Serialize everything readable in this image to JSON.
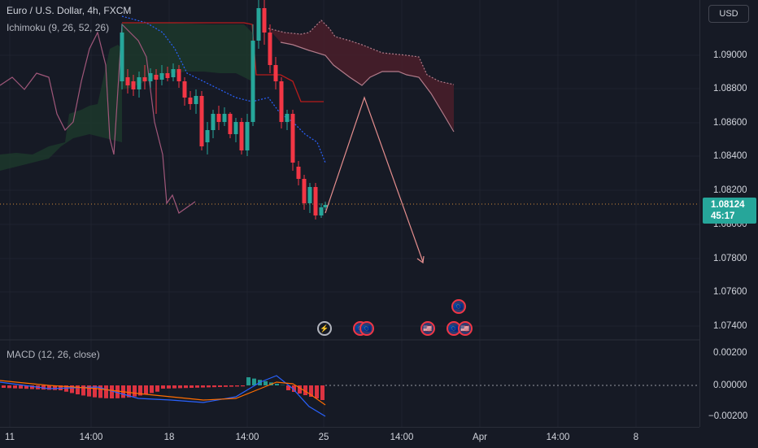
{
  "legend": {
    "symbol": "Euro / U.S. Dollar, 4h, FXCM",
    "ichimoku": "Ichimoku (9, 26, 52, 26)",
    "macd": "MACD (12, 26, close)"
  },
  "price_axis": {
    "currency": "USD",
    "ticks": [
      "1.09000",
      "1.08800",
      "1.08600",
      "1.08400",
      "1.08200",
      "1.08000",
      "1.07800",
      "1.07600",
      "1.07400"
    ],
    "last_price": "1.08124",
    "countdown": "45:17"
  },
  "macd_axis": {
    "ticks": [
      "0.00200",
      "0.00000",
      "−0.00200"
    ]
  },
  "time_axis": {
    "ticks": [
      "11",
      "14:00",
      "18",
      "14:00",
      "25",
      "14:00",
      "Apr",
      "14:00",
      "8"
    ]
  },
  "events": {
    "flash": "⚡",
    "flag": "🇪🇺",
    "us": "🇺🇸"
  },
  "colors": {
    "bull": "#26a69a",
    "bear": "#f23645",
    "background": "#161a25",
    "cloud_bear": "#4a1f2a",
    "cloud_bull": "#1d3a2c",
    "kumo_line": "#b27b8a",
    "macd_line": "#2962ff",
    "signal_line": "#ff6d00",
    "projection": "#e58e8e"
  }
}
